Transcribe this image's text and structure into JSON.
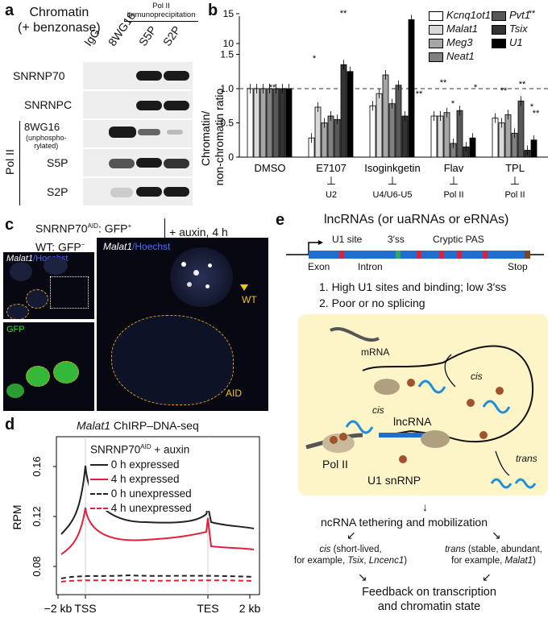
{
  "panel_a": {
    "letter": "a",
    "title_line1": "Chromatin",
    "title_line2": "(+ benzonase)",
    "group_line1": "Pol II",
    "group_line2": "immunoprecipitation",
    "lanes": [
      "IgG",
      "8WG16",
      "S5P",
      "S2P"
    ],
    "rows": [
      "SNRNP70",
      "SNRNPC",
      "8WG16",
      "S5P",
      "S2P"
    ],
    "row3_sub1": "(unphospho-",
    "row3_sub2": "rylated)",
    "side_label": "Pol II"
  },
  "panel_b": {
    "letter": "b",
    "legend": [
      "Kcnq1ot1",
      "Malat1",
      "Meg3",
      "Neat1",
      "Pvt1",
      "Tsix",
      "U1"
    ],
    "treatments": [
      "DMSO",
      "E7107",
      "Isoginkgetin",
      "Flav",
      "TPL"
    ],
    "targets": [
      "U2",
      "U4/U6-U5",
      "Pol II",
      "Pol II"
    ],
    "sig_marks": [
      "**",
      "*",
      "**",
      "**",
      "**",
      "*",
      "*",
      "**",
      "**",
      "*",
      "**",
      "**"
    ],
    "inhibit_symbol": "⊥"
  },
  "chart_data": {
    "type": "bar",
    "ylabel": "Chromatin/ non-chromatin ratio",
    "yticks": [
      "0",
      "0.5",
      "1.0",
      "1.5",
      "10",
      "15"
    ],
    "categories": [
      "DMSO",
      "E7107",
      "Isoginkgetin",
      "Flav",
      "TPL"
    ],
    "series": [
      {
        "name": "Kcnq1ot1",
        "color": "#ffffff",
        "values": [
          1.0,
          0.28,
          0.75,
          0.6,
          0.57
        ]
      },
      {
        "name": "Malat1",
        "color": "#d9d9d9",
        "values": [
          1.0,
          0.73,
          1.6,
          0.6,
          0.5
        ]
      },
      {
        "name": "Meg3",
        "color": "#a6a6a6",
        "values": [
          1.0,
          0.5,
          1.2,
          0.65,
          0.62
        ]
      },
      {
        "name": "Neat1",
        "color": "#808080",
        "values": [
          1.0,
          0.6,
          0.78,
          0.2,
          0.35
        ]
      },
      {
        "name": "Pvt1",
        "color": "#595959",
        "values": [
          1.0,
          0.55,
          1.05,
          0.68,
          0.82
        ]
      },
      {
        "name": "Tsix",
        "color": "#333333",
        "values": [
          1.0,
          1.35,
          0.6,
          0.15,
          0.1
        ]
      },
      {
        "name": "U1",
        "color": "#000000",
        "values": [
          1.0,
          1.25,
          14.0,
          0.28,
          0.25
        ]
      }
    ],
    "reference_line": 1.0
  },
  "panel_c": {
    "letter": "c",
    "line1": "SNRNP70",
    "line1_sup": "AID",
    "line1_end": ": GFP",
    "line1_sup2": "+",
    "line2": "WT: GFP",
    "line2_sup": "−",
    "treatment": "+ auxin, 4 h",
    "img1_a": "Malat1",
    "img1_b": "/Hoechst",
    "img2": "GFP",
    "img3_a": "Malat1",
    "img3_b": "/Hoechst",
    "wt_label": "WT",
    "aid_label": "AID"
  },
  "panel_d": {
    "letter": "d",
    "title_gene": "Malat1",
    "title_rest": " ChIRP–DNA-seq",
    "box_title": "SNRNP70",
    "box_title_sup": "AID",
    "box_title_end": " + auxin",
    "legend": [
      "0 h expressed",
      "4 h expressed",
      "0 h unexpressed",
      "4 h unexpressed"
    ],
    "ylabel": "RPM",
    "yticks": [
      "0.08",
      "0.12",
      "0.16"
    ],
    "xticks": [
      "−2 kb",
      "TSS",
      "TES",
      "2 kb"
    ]
  },
  "panel_e": {
    "letter": "e",
    "title": "lncRNAs (or uaRNAs or eRNAs)",
    "u1site": "U1 site",
    "ss3": "3′ss",
    "cryptic": "Cryptic PAS",
    "exon": "Exon",
    "intron": "Intron",
    "stop": "Stop",
    "point1": "1. High U1 sites and binding; low 3′ss",
    "point2": "2. Poor or no splicing",
    "mrna": "mRNA",
    "cis1": "cis",
    "cis2": "cis",
    "lncrna": "lncRNA",
    "polii": "Pol II",
    "u1snrnp": "U1 snRNP",
    "trans": "trans",
    "tether": "ncRNA tethering and mobilization",
    "cis_col1a": "cis",
    "cis_col1b": " (short-lived,",
    "cis_col2a": "for example, ",
    "cis_col2b": "Tsix",
    "cis_col2c": ", ",
    "cis_col2d": "Lncenc1",
    "cis_col2e": ")",
    "trans_col1a": "trans",
    "trans_col1b": " (stable, abundant,",
    "trans_col2a": "for example, ",
    "trans_col2b": "Malat1",
    "trans_col2c": ")",
    "feedback1": "Feedback on transcription",
    "feedback2": "and chromatin state"
  }
}
